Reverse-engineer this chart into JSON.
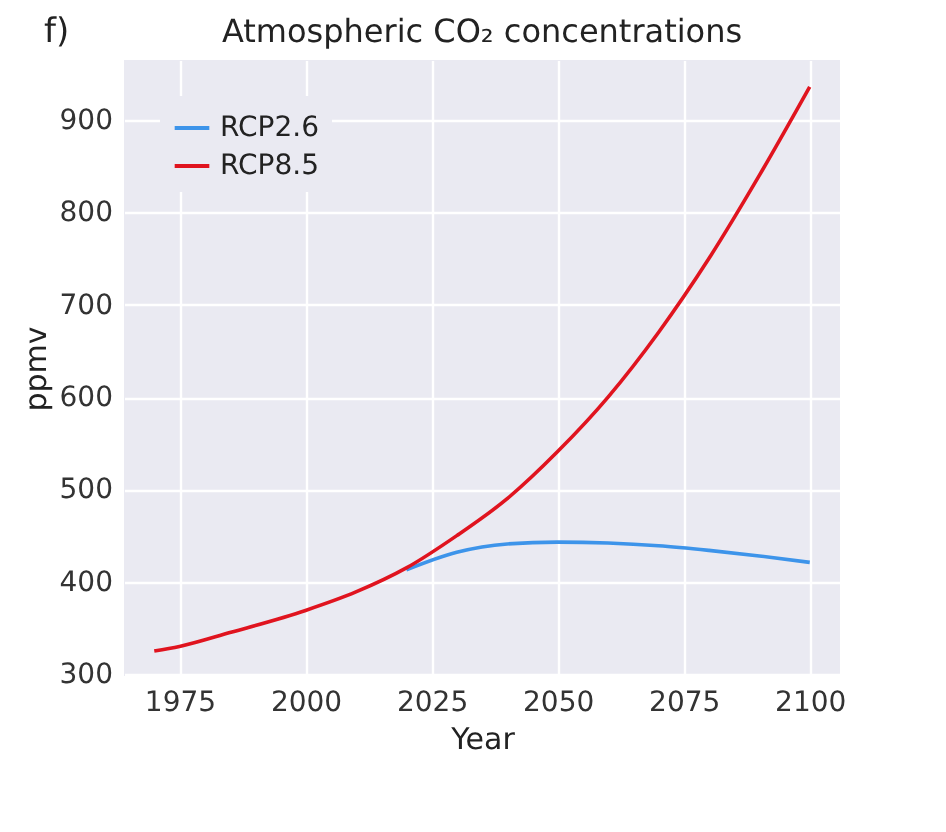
{
  "chart_data": {
    "type": "line",
    "title": "Atmospheric CO₂ concentrations",
    "xlabel": "Year",
    "ylabel": "ppmv",
    "annotations": [
      "f)"
    ],
    "x": [
      1970,
      1975,
      1985,
      2000,
      2010,
      2020,
      2030,
      2040,
      2050,
      2060,
      2070,
      2080,
      2090,
      2100
    ],
    "series": [
      {
        "name": "RCP2.6",
        "color": "#3d94ea",
        "values": [
          null,
          null,
          null,
          null,
          null,
          413,
          432,
          441,
          443,
          442,
          439,
          434,
          428,
          421
        ]
      },
      {
        "name": "RCP8.5",
        "color": "#e0141f",
        "values": [
          325,
          330,
          345,
          369,
          389,
          415,
          450,
          490,
          541,
          600,
          670,
          750,
          840,
          936
        ]
      }
    ],
    "xlim": [
      1964,
      2106
    ],
    "ylim": [
      298,
      965
    ],
    "xticks": [
      1975,
      2000,
      2025,
      2050,
      2075,
      2100
    ],
    "yticks": [
      300,
      400,
      500,
      600,
      700,
      800,
      900
    ],
    "grid": true,
    "legend": "top left"
  }
}
